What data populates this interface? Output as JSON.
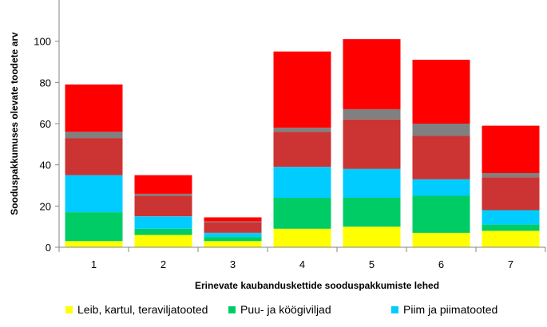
{
  "chart_data": {
    "type": "bar",
    "stacked": true,
    "categories": [
      "1",
      "2",
      "3",
      "4",
      "5",
      "6",
      "7"
    ],
    "xlabel": "Erinevate kaubanduskettide sooduspakkumiste lehed",
    "ylabel": "Sooduspakkumuses olevate toodete arv",
    "ylim": [
      0,
      120
    ],
    "yticks": [
      "0",
      "20",
      "40",
      "60",
      "80",
      "100"
    ],
    "grid": false,
    "legend_position": "bottom",
    "series": [
      {
        "name": "Leib, kartul, teraviljatooted",
        "color": "#ffff00",
        "values": [
          3,
          6,
          3,
          9,
          10,
          7,
          8
        ]
      },
      {
        "name": "Puu- ja köögiviljad",
        "color": "#00cc66",
        "values": [
          14,
          3,
          2,
          15,
          14,
          18,
          3
        ]
      },
      {
        "name": "Piim ja piimatooted",
        "color": "#00ccff",
        "values": [
          18,
          6,
          2,
          15,
          14,
          8,
          7
        ]
      },
      {
        "name": "",
        "color": "#cc3333",
        "values": [
          18,
          10,
          5,
          17,
          24,
          21,
          16
        ]
      },
      {
        "name": "",
        "color": "#808080",
        "values": [
          3,
          1,
          0.5,
          2,
          5,
          6,
          2
        ]
      },
      {
        "name": "",
        "color": "#ff0000",
        "values": [
          23,
          9,
          2,
          37,
          34,
          31,
          23
        ]
      }
    ]
  }
}
